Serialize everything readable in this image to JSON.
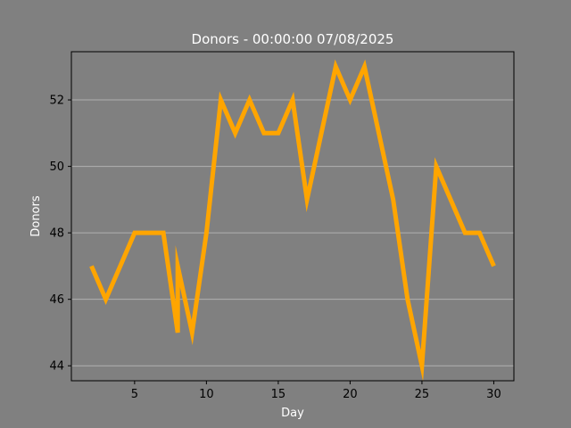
{
  "chart_data": {
    "type": "line",
    "title": "Donors - 00:00:00 07/08/2025",
    "xlabel": "Day",
    "ylabel": "Donors",
    "xlim": [
      0.6,
      31.4
    ],
    "ylim": [
      43.55,
      53.45
    ],
    "xticks": [
      5,
      10,
      15,
      20,
      25,
      30
    ],
    "yticks": [
      44,
      46,
      48,
      50,
      52
    ],
    "grid": "horizontal",
    "series": [
      {
        "color": "#ffa500",
        "x": [
          2,
          3,
          4,
          5,
          6,
          7,
          8,
          8,
          8,
          9,
          10,
          11,
          12,
          13,
          14,
          15,
          16,
          17,
          18,
          19,
          20,
          21,
          22,
          23,
          24,
          25,
          26,
          27,
          28,
          29,
          30
        ],
        "y": [
          47,
          46,
          47,
          48,
          48,
          48,
          45,
          47,
          47,
          45,
          48,
          52,
          51,
          52,
          51,
          51,
          52,
          49,
          51,
          53,
          52,
          53,
          51,
          49,
          46,
          44,
          50,
          49,
          48,
          48,
          47
        ]
      }
    ],
    "colors": {
      "background": "#808080",
      "axes_background": "#808080",
      "grid": "#b0b0b0",
      "text": "#ffffff",
      "tick_text": "#000000"
    }
  }
}
